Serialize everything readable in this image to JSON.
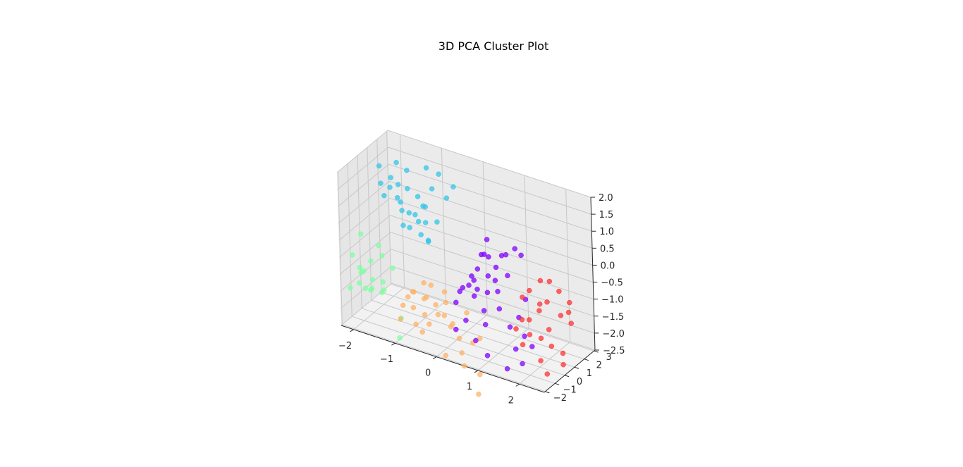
{
  "chart_data": {
    "type": "scatter",
    "title": "3D PCA Cluster Plot",
    "xlabel": "",
    "ylabel": "",
    "zlabel": "",
    "xlim": [
      -2.3,
      2.6
    ],
    "ylim": [
      -2.1,
      3.1
    ],
    "zlim": [
      -2.5,
      2.0
    ],
    "x_ticks": [
      -2,
      -1,
      0,
      1,
      2
    ],
    "y_ticks": [
      -2,
      -1,
      0,
      1,
      2,
      3
    ],
    "z_ticks": [
      -2.5,
      -2.0,
      -1.5,
      -1.0,
      -0.5,
      0.0,
      0.5,
      1.0,
      1.5,
      2.0
    ],
    "x_tick_labels": [
      "−2",
      "−1",
      "0",
      "1",
      "2"
    ],
    "y_tick_labels": [
      "−2",
      "−1",
      "0",
      "1",
      "2",
      "3"
    ],
    "z_tick_labels": [
      "−2.5",
      "−2.0",
      "−1.5",
      "−1.0",
      "−0.5",
      "0.0",
      "0.5",
      "1.0",
      "1.5",
      "2.0"
    ],
    "grid": true,
    "series": [
      {
        "color": "#33C6E6",
        "points": [
          [
            -2.0,
            0.9,
            1.6
          ],
          [
            -1.9,
            0.6,
            1.2
          ],
          [
            -1.8,
            1.1,
            1.0
          ],
          [
            -1.7,
            0.8,
            1.4
          ],
          [
            -1.6,
            1.0,
            0.8
          ],
          [
            -1.5,
            0.7,
            1.3
          ],
          [
            -1.6,
            1.3,
            0.6
          ],
          [
            -1.4,
            1.2,
            1.1
          ],
          [
            -1.3,
            0.9,
            0.5
          ],
          [
            -1.2,
            1.4,
            0.9
          ],
          [
            -1.5,
            1.6,
            1.5
          ],
          [
            -1.1,
            1.0,
            0.3
          ],
          [
            -1.0,
            1.3,
            0.7
          ],
          [
            -0.9,
            1.6,
            1.2
          ],
          [
            -1.2,
            0.5,
            0.2
          ],
          [
            -0.8,
            1.9,
            1.6
          ],
          [
            -1.0,
            0.8,
            0.0
          ],
          [
            -1.3,
            1.5,
            0.3
          ],
          [
            -1.7,
            1.4,
            1.7
          ],
          [
            -0.7,
            1.2,
            0.4
          ],
          [
            -1.1,
            1.7,
            0.1
          ],
          [
            -0.9,
            1.1,
            -0.2
          ],
          [
            -1.4,
            0.6,
            0.6
          ],
          [
            -0.6,
            1.8,
            1.0
          ],
          [
            -1.8,
            0.5,
            0.9
          ],
          [
            -1.2,
            1.9,
            0.5
          ],
          [
            -0.8,
            0.7,
            -0.1
          ],
          [
            -1.5,
            1.1,
            0.0
          ],
          [
            -1.0,
            1.5,
            1.8
          ],
          [
            -0.5,
            2.1,
            1.3
          ]
        ]
      },
      {
        "color": "#7FFFA0",
        "points": [
          [
            -2.2,
            -1.2,
            -0.6
          ],
          [
            -2.1,
            -0.9,
            -1.0
          ],
          [
            -2.0,
            -1.4,
            -1.3
          ],
          [
            -1.9,
            -0.6,
            -0.8
          ],
          [
            -1.8,
            -1.1,
            -1.5
          ],
          [
            -2.2,
            -0.3,
            -0.2
          ],
          [
            -2.0,
            -0.8,
            -1.6
          ],
          [
            -1.7,
            -1.3,
            -1.1
          ],
          [
            -1.6,
            -0.7,
            -0.5
          ],
          [
            -1.9,
            -1.6,
            -0.9
          ],
          [
            -1.5,
            -1.0,
            -1.4
          ],
          [
            -2.1,
            -0.5,
            -1.2
          ],
          [
            -1.8,
            -0.2,
            -0.4
          ],
          [
            -1.4,
            -1.5,
            -1.0
          ],
          [
            -1.7,
            -0.4,
            -1.7
          ],
          [
            -1.3,
            -0.9,
            -0.7
          ],
          [
            -2.2,
            -1.5,
            -1.5
          ],
          [
            -1.2,
            -0.6,
            -2.2
          ],
          [
            -1.6,
            -1.8,
            -1.2
          ],
          [
            -1.1,
            -1.2,
            -2.6
          ]
        ]
      },
      {
        "color": "#FFB266",
        "points": [
          [
            -1.0,
            -1.2,
            -1.6
          ],
          [
            -0.8,
            -0.9,
            -1.2
          ],
          [
            -0.7,
            -1.4,
            -1.5
          ],
          [
            -0.6,
            -0.7,
            -0.9
          ],
          [
            -0.5,
            -1.1,
            -1.7
          ],
          [
            -0.9,
            -0.6,
            -1.3
          ],
          [
            -0.4,
            -1.3,
            -1.1
          ],
          [
            -0.3,
            -0.8,
            -1.4
          ],
          [
            -0.6,
            -1.6,
            -1.9
          ],
          [
            -0.2,
            -1.0,
            -1.6
          ],
          [
            -0.8,
            -1.5,
            -1.2
          ],
          [
            -0.1,
            -0.6,
            -1.3
          ],
          [
            -0.5,
            -0.4,
            -1.0
          ],
          [
            -0.3,
            -1.5,
            -1.8
          ],
          [
            0.0,
            -1.2,
            -1.5
          ],
          [
            -0.7,
            -0.3,
            -1.5
          ],
          [
            0.1,
            -0.8,
            -1.8
          ],
          [
            -0.4,
            -1.8,
            -2.0
          ],
          [
            0.2,
            -1.4,
            -1.7
          ],
          [
            -0.2,
            -0.3,
            -1.1
          ],
          [
            0.3,
            -1.0,
            -2.1
          ],
          [
            0.5,
            -1.6,
            -2.3
          ],
          [
            0.7,
            -1.3,
            -2.0
          ],
          [
            0.4,
            -0.6,
            -1.4
          ],
          [
            -0.9,
            -1.9,
            -1.8
          ],
          [
            0.6,
            -1.8,
            -2.6
          ],
          [
            0.8,
            -1.0,
            -1.9
          ],
          [
            0.9,
            -1.5,
            -2.8
          ],
          [
            0.2,
            -2.0,
            -2.4
          ],
          [
            1.0,
            -2.1,
            -3.2
          ]
        ]
      },
      {
        "color": "#8000FF",
        "points": [
          [
            0.6,
            0.2,
            0.2
          ],
          [
            0.7,
            0.5,
            0.1
          ],
          [
            0.8,
            0.0,
            -0.3
          ],
          [
            0.9,
            0.4,
            -0.1
          ],
          [
            0.5,
            -0.2,
            -0.5
          ],
          [
            0.4,
            0.6,
            -0.4
          ],
          [
            1.0,
            0.1,
            -0.7
          ],
          [
            0.3,
            0.1,
            -0.8
          ],
          [
            1.1,
            0.6,
            0.3
          ],
          [
            0.2,
            -0.4,
            -0.9
          ],
          [
            0.6,
            0.8,
            0.5
          ],
          [
            0.8,
            -0.5,
            -1.2
          ],
          [
            1.2,
            0.3,
            -0.2
          ],
          [
            0.1,
            0.3,
            -1.0
          ],
          [
            0.9,
            -0.8,
            -1.5
          ],
          [
            1.3,
            0.0,
            -1.6
          ],
          [
            0.4,
            -0.7,
            -1.6
          ],
          [
            1.4,
            0.5,
            -1.4
          ],
          [
            0.7,
            -1.0,
            -2.0
          ],
          [
            1.5,
            -0.3,
            -2.1
          ],
          [
            0.0,
            0.0,
            -1.4
          ],
          [
            1.6,
            0.2,
            -1.8
          ],
          [
            1.0,
            -1.1,
            -2.3
          ],
          [
            1.7,
            -0.5,
            -2.4
          ],
          [
            0.3,
            0.4,
            -0.6
          ],
          [
            1.2,
            1.1,
            0.4
          ],
          [
            0.5,
            0.9,
            0.0
          ],
          [
            1.8,
            0.1,
            -2.0
          ],
          [
            0.2,
            -0.9,
            -1.9
          ],
          [
            1.4,
            -0.8,
            -2.6
          ],
          [
            0.8,
            0.7,
            -0.6
          ],
          [
            1.1,
            -0.2,
            -1.1
          ],
          [
            0.6,
            -0.3,
            -0.7
          ],
          [
            0.9,
            1.0,
            0.1
          ],
          [
            1.5,
            0.8,
            -0.9
          ],
          [
            0.4,
            0.2,
            -1.1
          ],
          [
            1.3,
            1.3,
            0.2
          ],
          [
            0.7,
            0.3,
            -0.9
          ]
        ]
      },
      {
        "color": "#FF3333",
        "points": [
          [
            1.6,
            0.8,
            -0.6
          ],
          [
            1.8,
            1.1,
            -0.3
          ],
          [
            2.0,
            0.9,
            -0.8
          ],
          [
            2.2,
            1.3,
            -0.5
          ],
          [
            1.9,
            0.5,
            -1.0
          ],
          [
            2.3,
            1.0,
            -1.1
          ],
          [
            1.7,
            0.3,
            -1.3
          ],
          [
            2.1,
            0.6,
            -1.5
          ],
          [
            2.4,
            1.5,
            -0.8
          ],
          [
            1.5,
            0.4,
            -1.4
          ],
          [
            2.0,
            0.2,
            -1.7
          ],
          [
            2.5,
            1.2,
            -1.3
          ],
          [
            1.8,
            -0.1,
            -1.6
          ],
          [
            2.2,
            0.4,
            -1.9
          ],
          [
            1.4,
            0.9,
            -0.9
          ],
          [
            2.4,
            0.7,
            -2.1
          ],
          [
            1.6,
            0.0,
            -2.0
          ],
          [
            2.3,
            1.8,
            -1.2
          ],
          [
            2.1,
            -0.3,
            -2.2
          ],
          [
            1.9,
            1.6,
            -0.4
          ],
          [
            1.3,
            0.6,
            -1.8
          ],
          [
            2.5,
            0.3,
            -2.3
          ],
          [
            1.7,
            1.4,
            -1.1
          ],
          [
            2.2,
            -0.1,
            -2.6
          ]
        ]
      }
    ]
  }
}
